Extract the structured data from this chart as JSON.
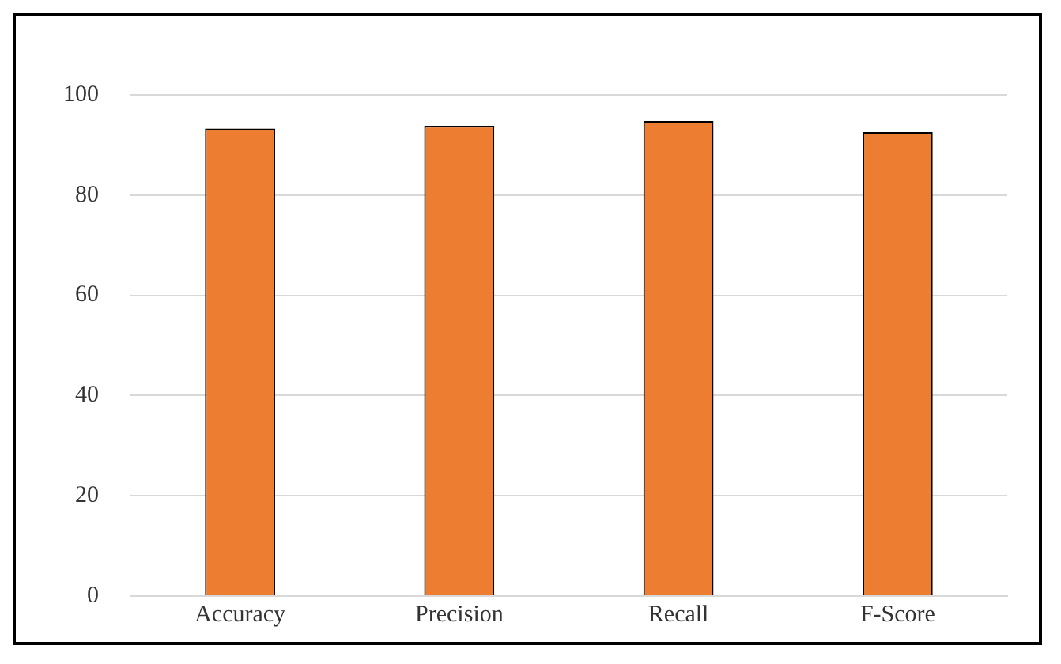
{
  "chart_data": {
    "type": "bar",
    "categories": [
      "Accuracy",
      "Precision",
      "Recall",
      "F-Score"
    ],
    "values": [
      93.3,
      93.8,
      94.8,
      92.6
    ],
    "color": "#ed7d31",
    "ylim": [
      0,
      100
    ],
    "yticks": [
      0,
      20,
      40,
      60,
      80,
      100
    ],
    "grid": "y"
  }
}
